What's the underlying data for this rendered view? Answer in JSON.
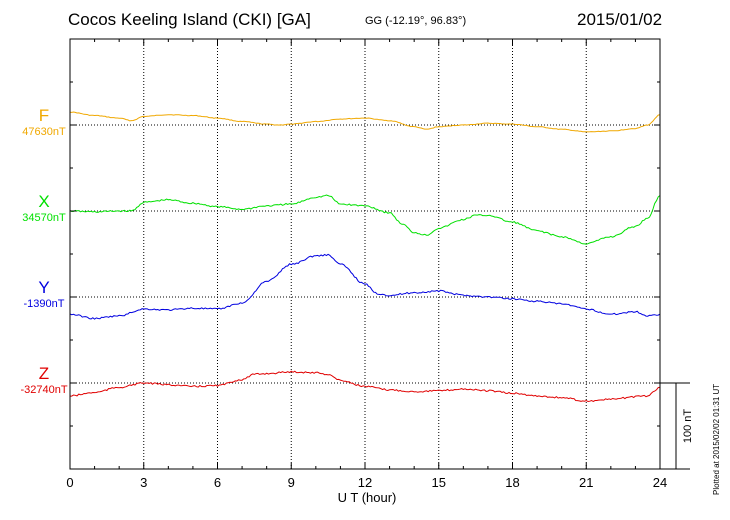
{
  "header": {
    "title": "Cocos Keeling Island (CKI)  [GA]",
    "coords": "GG (-12.19°,  96.83°)",
    "date": "2015/01/02",
    "plotted": "Plotted at 2015/02/02 01:31  UT"
  },
  "chart_data": {
    "type": "line",
    "xlabel": "U T (hour)",
    "xlim": [
      0,
      24
    ],
    "xticks": [
      0,
      3,
      6,
      9,
      12,
      15,
      18,
      21,
      24
    ],
    "grid": true,
    "scale_bar": {
      "label": "100 nT",
      "value_nT": 100
    },
    "series": [
      {
        "name": "F",
        "baseline_label": "47630nT",
        "baseline_nT": 47630,
        "color": "#f0a800",
        "x": [
          0,
          1,
          2,
          2.5,
          3,
          4,
          5,
          6,
          7,
          8,
          8.5,
          9,
          10,
          11,
          12,
          13,
          14,
          14.5,
          15,
          16,
          17,
          18,
          19,
          20,
          21,
          22,
          23,
          23.5,
          24
        ],
        "values": [
          47645,
          47641,
          47638,
          47635,
          47640,
          47642,
          47641,
          47638,
          47634,
          47631,
          47630,
          47631,
          47634,
          47637,
          47638,
          47635,
          47628,
          47625,
          47628,
          47630,
          47632,
          47631,
          47628,
          47625,
          47622,
          47623,
          47626,
          47630,
          47642
        ]
      },
      {
        "name": "X",
        "baseline_label": "34570nT",
        "baseline_nT": 34570,
        "color": "#00e000",
        "x": [
          0,
          1,
          2,
          2.5,
          3,
          4,
          5,
          6,
          7,
          8,
          9,
          10,
          10.5,
          11,
          12,
          13,
          13.5,
          14,
          14.5,
          15,
          16,
          16.5,
          17,
          18,
          19,
          20,
          21,
          22,
          23,
          23.5,
          24
        ],
        "values": [
          34570,
          34569,
          34570,
          34570,
          34580,
          34583,
          34579,
          34575,
          34572,
          34576,
          34578,
          34586,
          34588,
          34578,
          34576,
          34568,
          34555,
          34545,
          34542,
          34550,
          34560,
          34565,
          34565,
          34557,
          34547,
          34540,
          34532,
          34540,
          34552,
          34562,
          34588
        ]
      },
      {
        "name": "Y",
        "baseline_label": "-1390nT",
        "baseline_nT": -1390,
        "color": "#0000e0",
        "x": [
          0,
          1,
          2,
          3,
          4,
          5,
          6,
          7,
          8,
          9,
          10,
          10.5,
          11,
          12,
          12.5,
          13,
          14,
          15,
          16,
          17,
          18,
          19,
          20,
          21,
          22,
          23,
          23.5,
          24
        ],
        "values": [
          -1410,
          -1415,
          -1412,
          -1404,
          -1405,
          -1403,
          -1404,
          -1397,
          -1372,
          -1352,
          -1342,
          -1341,
          -1352,
          -1375,
          -1386,
          -1388,
          -1385,
          -1383,
          -1388,
          -1390,
          -1392,
          -1395,
          -1398,
          -1404,
          -1410,
          -1407,
          -1412,
          -1410
        ]
      },
      {
        "name": "Z",
        "baseline_label": "-32740nT",
        "baseline_nT": -32740,
        "color": "#e00000",
        "x": [
          0,
          1,
          2,
          3,
          4,
          5,
          6,
          7,
          7.5,
          8,
          9,
          10,
          10.5,
          11,
          12,
          13,
          14,
          15,
          16,
          17,
          18,
          19,
          20,
          21,
          22,
          23,
          23.5,
          24
        ],
        "values": [
          -32755,
          -32751,
          -32745,
          -32740,
          -32742,
          -32744,
          -32743,
          -32736,
          -32730,
          -32729,
          -32727,
          -32728,
          -32730,
          -32737,
          -32744,
          -32748,
          -32750,
          -32749,
          -32747,
          -32749,
          -32752,
          -32755,
          -32757,
          -32761,
          -32759,
          -32756,
          -32755,
          -32745
        ]
      }
    ]
  }
}
